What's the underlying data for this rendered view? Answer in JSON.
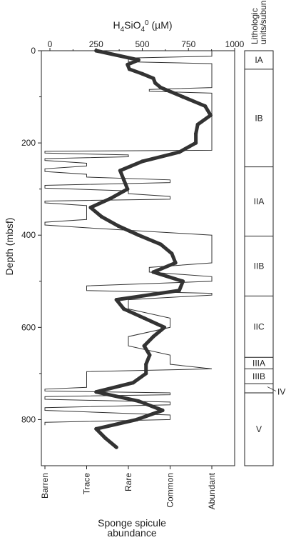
{
  "chart_data": {
    "type": "line",
    "top_axis": {
      "title_prefix": "H",
      "title_sub1": "4",
      "title_mid": "SiO",
      "title_sub2": "4",
      "title_sup": "0",
      "title_suffix": " (µM)",
      "range": [
        0,
        1000
      ],
      "ticks": [
        "0",
        "250",
        "500",
        "750",
        "1000"
      ],
      "tick_values": [
        0,
        250,
        500,
        750,
        1000
      ]
    },
    "depth_axis": {
      "title": "Depth (mbsf)",
      "range": [
        0,
        900
      ],
      "ticks": [
        "0",
        "200",
        "400",
        "600",
        "800"
      ],
      "tick_values": [
        0,
        200,
        400,
        600,
        800
      ]
    },
    "bottom_axis": {
      "title_line1": "Sponge spicule",
      "title_line2": "abundance",
      "categories": [
        "Barren",
        "Trace",
        "Rare",
        "Common",
        "Abundant"
      ]
    },
    "units_header": {
      "line1": "Lithologic",
      "line2": "units/subunits"
    },
    "units": [
      {
        "label": "IA",
        "top": 0,
        "bottom": 40
      },
      {
        "label": "IB",
        "top": 40,
        "bottom": 252
      },
      {
        "label": "IIA",
        "top": 252,
        "bottom": 402
      },
      {
        "label": "IIB",
        "top": 402,
        "bottom": 532
      },
      {
        "label": "IIC",
        "top": 532,
        "bottom": 665
      },
      {
        "label": "IIIA",
        "top": 665,
        "bottom": 690
      },
      {
        "label": "IIIB",
        "top": 690,
        "bottom": 722
      },
      {
        "label": "IV",
        "top": 722,
        "bottom": 742
      },
      {
        "label": "V",
        "top": 742,
        "bottom": 900
      }
    ],
    "series": [
      {
        "values_key": "silica",
        "depth": [
          0,
          20,
          30,
          40,
          50,
          60,
          70,
          80,
          100,
          120,
          140,
          160,
          180,
          200,
          220,
          240,
          260,
          280,
          300,
          320,
          340,
          360,
          380,
          400,
          420,
          440,
          460,
          480,
          500,
          520,
          540,
          560,
          580,
          600,
          620,
          640,
          660,
          680,
          700,
          720,
          740,
          760,
          780,
          800,
          820,
          840,
          860
        ],
        "values": [
          250,
          480,
          420,
          430,
          500,
          560,
          570,
          600,
          720,
          840,
          870,
          800,
          790,
          790,
          700,
          500,
          380,
          400,
          420,
          330,
          220,
          280,
          370,
          480,
          600,
          660,
          680,
          560,
          720,
          700,
          360,
          400,
          510,
          620,
          560,
          510,
          540,
          520,
          520,
          450,
          250,
          480,
          610,
          470,
          250,
          300,
          360
        ]
      },
      {
        "values_key": "spicules",
        "depth": [
          0,
          12,
          16,
          24,
          28,
          36,
          40,
          80,
          84,
          88,
          92,
          96,
          100,
          216,
          218,
          222,
          226,
          230,
          234,
          238,
          244,
          250,
          256,
          262,
          268,
          274,
          280,
          286,
          292,
          298,
          304,
          310,
          316,
          322,
          326,
          330,
          336,
          342,
          350,
          366,
          372,
          378,
          384,
          400,
          404,
          408,
          460,
          470,
          480,
          490,
          500,
          510,
          520,
          526,
          530,
          540,
          560,
          580,
          600,
          620,
          640,
          660,
          680,
          690,
          696,
          710,
          730,
          734,
          738,
          742,
          746,
          750,
          756,
          762,
          768,
          774,
          780,
          790,
          800,
          806,
          812
        ],
        "values": [
          4,
          4,
          2,
          2,
          4,
          4,
          4,
          4,
          2.5,
          2.5,
          4,
          4,
          4,
          4,
          0,
          0,
          2,
          2,
          0,
          0,
          1,
          1,
          0,
          0,
          1,
          1,
          3,
          3,
          0,
          0,
          2,
          2,
          3,
          3,
          0,
          0,
          1,
          1,
          1,
          1,
          0,
          0,
          1,
          4,
          4,
          4,
          4,
          2.5,
          2.5,
          4,
          4,
          1,
          1,
          4,
          4,
          2,
          2,
          3,
          3,
          2,
          2,
          3,
          3,
          4,
          1,
          1,
          1,
          0,
          0,
          3,
          3,
          0,
          0,
          3,
          3,
          0,
          0,
          3,
          3,
          0,
          0
        ]
      }
    ]
  }
}
